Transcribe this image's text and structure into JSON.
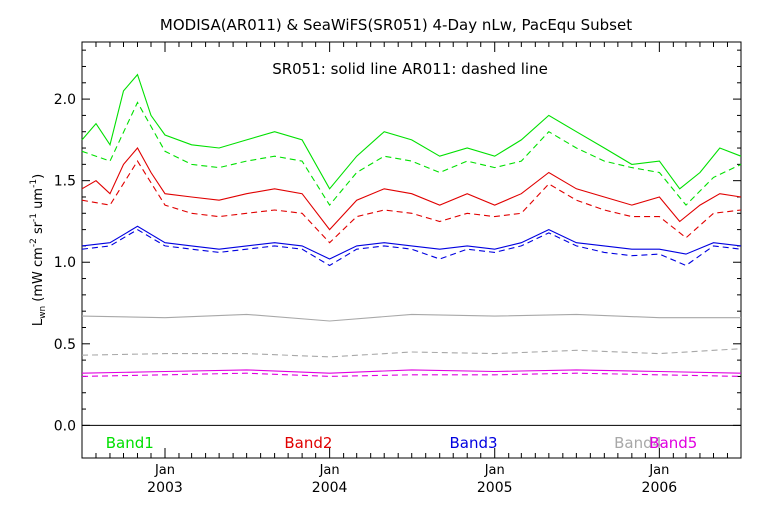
{
  "chart_data": {
    "type": "line",
    "title": "MODISA(AR011) & SeaWiFS(SR051) 4-Day nLw, PacEqu Subset",
    "annotation": "SR051: solid line   AR011: dashed line",
    "ylabel": {
      "main": "L",
      "sub": "wn",
      "mid1": " (mW cm",
      "sup1": "-2",
      "mid2": " sr",
      "sup2": "-1",
      "mid3": " um",
      "sup3": "-1",
      "end": ")"
    },
    "xlim": [
      "2002-07-01",
      "2006-07-01"
    ],
    "ylim": [
      -0.2,
      2.35
    ],
    "yticks": [
      0.0,
      0.5,
      1.0,
      1.5,
      2.0
    ],
    "ytick_labels": [
      "0.0",
      "0.5",
      "1.0",
      "1.5",
      "2.0"
    ],
    "xticks": [
      {
        "date": "2003-01-01",
        "month": "Jan",
        "year": "2003"
      },
      {
        "date": "2004-01-01",
        "month": "Jan",
        "year": "2004"
      },
      {
        "date": "2005-01-01",
        "month": "Jan",
        "year": "2005"
      },
      {
        "date": "2006-01-01",
        "month": "Jan",
        "year": "2006"
      }
    ],
    "zero_line": 0.0,
    "grid": false,
    "series": [
      {
        "name": "Band1",
        "color": "#00e000",
        "label_x_date": "2002-10-15",
        "sensors": [
          {
            "sensor": "SR051",
            "style": "solid",
            "x": [
              "2002-07-01",
              "2002-08-01",
              "2002-09-01",
              "2002-10-01",
              "2002-11-01",
              "2002-12-01",
              "2003-01-01",
              "2003-03-01",
              "2003-05-01",
              "2003-07-01",
              "2003-09-01",
              "2003-11-01",
              "2004-01-01",
              "2004-03-01",
              "2004-05-01",
              "2004-07-01",
              "2004-09-01",
              "2004-11-01",
              "2005-01-01",
              "2005-03-01",
              "2005-05-01",
              "2005-07-01",
              "2005-09-01",
              "2005-11-01",
              "2006-01-01",
              "2006-02-15",
              "2006-04-01",
              "2006-05-15",
              "2006-07-01"
            ],
            "y": [
              1.75,
              1.85,
              1.72,
              2.05,
              2.15,
              1.9,
              1.78,
              1.72,
              1.7,
              1.75,
              1.8,
              1.75,
              1.45,
              1.65,
              1.8,
              1.75,
              1.65,
              1.7,
              1.65,
              1.75,
              1.9,
              1.8,
              1.7,
              1.6,
              1.62,
              1.45,
              1.55,
              1.7,
              1.65
            ]
          },
          {
            "sensor": "AR011",
            "style": "dashed",
            "x": [
              "2002-07-01",
              "2002-09-01",
              "2002-11-01",
              "2003-01-01",
              "2003-03-01",
              "2003-05-01",
              "2003-07-01",
              "2003-09-01",
              "2003-11-01",
              "2004-01-01",
              "2004-03-01",
              "2004-05-01",
              "2004-07-01",
              "2004-09-01",
              "2004-11-01",
              "2005-01-01",
              "2005-03-01",
              "2005-05-01",
              "2005-07-01",
              "2005-09-01",
              "2005-11-01",
              "2006-01-01",
              "2006-03-01",
              "2006-05-01",
              "2006-07-01"
            ],
            "y": [
              1.68,
              1.62,
              1.98,
              1.68,
              1.6,
              1.58,
              1.62,
              1.65,
              1.62,
              1.35,
              1.55,
              1.65,
              1.62,
              1.55,
              1.62,
              1.58,
              1.62,
              1.8,
              1.7,
              1.62,
              1.58,
              1.55,
              1.35,
              1.52,
              1.6
            ]
          }
        ]
      },
      {
        "name": "Band2",
        "color": "#e00000",
        "label_x_date": "2003-11-15",
        "sensors": [
          {
            "sensor": "SR051",
            "style": "solid",
            "x": [
              "2002-07-01",
              "2002-08-01",
              "2002-09-01",
              "2002-10-01",
              "2002-11-01",
              "2002-12-01",
              "2003-01-01",
              "2003-03-01",
              "2003-05-01",
              "2003-07-01",
              "2003-09-01",
              "2003-11-01",
              "2004-01-01",
              "2004-03-01",
              "2004-05-01",
              "2004-07-01",
              "2004-09-01",
              "2004-11-01",
              "2005-01-01",
              "2005-03-01",
              "2005-05-01",
              "2005-07-01",
              "2005-09-01",
              "2005-11-01",
              "2006-01-01",
              "2006-02-15",
              "2006-04-01",
              "2006-05-15",
              "2006-07-01"
            ],
            "y": [
              1.45,
              1.5,
              1.42,
              1.6,
              1.7,
              1.55,
              1.42,
              1.4,
              1.38,
              1.42,
              1.45,
              1.42,
              1.2,
              1.38,
              1.45,
              1.42,
              1.35,
              1.42,
              1.35,
              1.42,
              1.55,
              1.45,
              1.4,
              1.35,
              1.4,
              1.25,
              1.35,
              1.42,
              1.4
            ]
          },
          {
            "sensor": "AR011",
            "style": "dashed",
            "x": [
              "2002-07-01",
              "2002-09-01",
              "2002-11-01",
              "2003-01-01",
              "2003-03-01",
              "2003-05-01",
              "2003-07-01",
              "2003-09-01",
              "2003-11-01",
              "2004-01-01",
              "2004-03-01",
              "2004-05-01",
              "2004-07-01",
              "2004-09-01",
              "2004-11-01",
              "2005-01-01",
              "2005-03-01",
              "2005-05-01",
              "2005-07-01",
              "2005-09-01",
              "2005-11-01",
              "2006-01-01",
              "2006-03-01",
              "2006-05-01",
              "2006-07-01"
            ],
            "y": [
              1.38,
              1.35,
              1.62,
              1.35,
              1.3,
              1.28,
              1.3,
              1.32,
              1.3,
              1.12,
              1.28,
              1.32,
              1.3,
              1.25,
              1.3,
              1.28,
              1.3,
              1.48,
              1.38,
              1.32,
              1.28,
              1.28,
              1.15,
              1.3,
              1.32
            ]
          }
        ]
      },
      {
        "name": "Band3",
        "color": "#0000e0",
        "label_x_date": "2004-11-15",
        "sensors": [
          {
            "sensor": "SR051",
            "style": "solid",
            "x": [
              "2002-07-01",
              "2002-09-01",
              "2002-11-01",
              "2003-01-01",
              "2003-03-01",
              "2003-05-01",
              "2003-07-01",
              "2003-09-01",
              "2003-11-01",
              "2004-01-01",
              "2004-03-01",
              "2004-05-01",
              "2004-07-01",
              "2004-09-01",
              "2004-11-01",
              "2005-01-01",
              "2005-03-01",
              "2005-05-01",
              "2005-07-01",
              "2005-09-01",
              "2005-11-01",
              "2006-01-01",
              "2006-03-01",
              "2006-05-01",
              "2006-07-01"
            ],
            "y": [
              1.1,
              1.12,
              1.22,
              1.12,
              1.1,
              1.08,
              1.1,
              1.12,
              1.1,
              1.02,
              1.1,
              1.12,
              1.1,
              1.08,
              1.1,
              1.08,
              1.12,
              1.2,
              1.12,
              1.1,
              1.08,
              1.08,
              1.05,
              1.12,
              1.1
            ]
          },
          {
            "sensor": "AR011",
            "style": "dashed",
            "x": [
              "2002-07-01",
              "2002-09-01",
              "2002-11-01",
              "2003-01-01",
              "2003-03-01",
              "2003-05-01",
              "2003-07-01",
              "2003-09-01",
              "2003-11-01",
              "2004-01-01",
              "2004-03-01",
              "2004-05-01",
              "2004-07-01",
              "2004-09-01",
              "2004-11-01",
              "2005-01-01",
              "2005-03-01",
              "2005-05-01",
              "2005-07-01",
              "2005-09-01",
              "2005-11-01",
              "2006-01-01",
              "2006-03-01",
              "2006-05-01",
              "2006-07-01"
            ],
            "y": [
              1.08,
              1.1,
              1.2,
              1.1,
              1.08,
              1.06,
              1.08,
              1.1,
              1.08,
              0.98,
              1.08,
              1.1,
              1.08,
              1.02,
              1.08,
              1.06,
              1.1,
              1.18,
              1.1,
              1.06,
              1.04,
              1.05,
              0.98,
              1.1,
              1.08
            ]
          }
        ]
      },
      {
        "name": "Band4",
        "color": "#a8a8a8",
        "label_x_date": "2005-11-15",
        "sensors": [
          {
            "sensor": "SR051",
            "style": "solid",
            "x": [
              "2002-07-01",
              "2003-01-01",
              "2003-07-01",
              "2004-01-01",
              "2004-07-01",
              "2005-01-01",
              "2005-07-01",
              "2006-01-01",
              "2006-07-01"
            ],
            "y": [
              0.67,
              0.66,
              0.68,
              0.64,
              0.68,
              0.67,
              0.68,
              0.66,
              0.66
            ]
          },
          {
            "sensor": "AR011",
            "style": "dashed",
            "x": [
              "2002-07-01",
              "2003-01-01",
              "2003-07-01",
              "2004-01-01",
              "2004-07-01",
              "2005-01-01",
              "2005-07-01",
              "2006-01-01",
              "2006-07-01"
            ],
            "y": [
              0.43,
              0.44,
              0.44,
              0.42,
              0.45,
              0.44,
              0.46,
              0.44,
              0.47
            ]
          }
        ]
      },
      {
        "name": "Band5",
        "color": "#e000e0",
        "label_x_date": "2006-02-01",
        "sensors": [
          {
            "sensor": "SR051",
            "style": "solid",
            "x": [
              "2002-07-01",
              "2003-01-01",
              "2003-07-01",
              "2004-01-01",
              "2004-07-01",
              "2005-01-01",
              "2005-07-01",
              "2006-01-01",
              "2006-07-01"
            ],
            "y": [
              0.32,
              0.33,
              0.34,
              0.32,
              0.34,
              0.33,
              0.34,
              0.33,
              0.32
            ]
          },
          {
            "sensor": "AR011",
            "style": "dashed",
            "x": [
              "2002-07-01",
              "2003-01-01",
              "2003-07-01",
              "2004-01-01",
              "2004-07-01",
              "2005-01-01",
              "2005-07-01",
              "2006-01-01",
              "2006-07-01"
            ],
            "y": [
              0.3,
              0.31,
              0.32,
              0.3,
              0.31,
              0.31,
              0.32,
              0.31,
              0.3
            ]
          }
        ]
      }
    ]
  }
}
